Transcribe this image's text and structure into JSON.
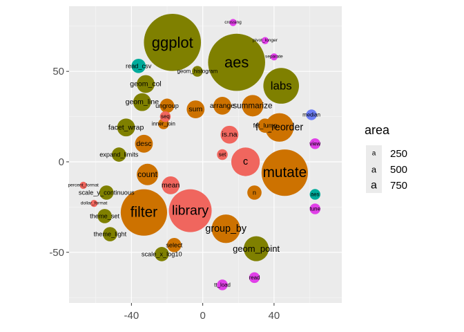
{
  "chart_data": {
    "type": "scatter",
    "subtype": "packed-circle bubble plot",
    "title": "",
    "xlabel": "",
    "ylabel": "",
    "xlim": [
      -75,
      78
    ],
    "ylim": [
      -78,
      86
    ],
    "xticks": [
      -40,
      0,
      40
    ],
    "yticks": [
      -50,
      0,
      50
    ],
    "xtick_labels": [
      "-40",
      "0",
      "40"
    ],
    "ytick_labels": [
      "-50",
      "0",
      "50"
    ],
    "grid": true,
    "panel_background": "#ebebeb",
    "legend": {
      "title": "area",
      "placement": "right",
      "entries": [
        {
          "key": "a",
          "label": "250",
          "size": "small"
        },
        {
          "key": "a",
          "label": "500",
          "size": "medium"
        },
        {
          "key": "a",
          "label": "750",
          "size": "large"
        }
      ]
    },
    "colors": {
      "olive": "#7f8000",
      "orange": "#cd7200",
      "salmon": "#f0665e",
      "teal": "#00ab9b",
      "blue": "#6d7ef6",
      "magenta": "#e040e8"
    },
    "bubbles": [
      {
        "label": "ggplot",
        "x": -17,
        "y": 66,
        "r": 16,
        "color": "olive"
      },
      {
        "label": "aes",
        "x": 19,
        "y": 55,
        "r": 16,
        "color": "olive"
      },
      {
        "label": "labs",
        "x": 44,
        "y": 42,
        "r": 10,
        "color": "olive"
      },
      {
        "label": "mutate",
        "x": 46,
        "y": -6,
        "r": 13,
        "color": "orange"
      },
      {
        "label": "filter",
        "x": -33,
        "y": -28,
        "r": 13,
        "color": "orange"
      },
      {
        "label": "library",
        "x": -7,
        "y": -27,
        "r": 12,
        "color": "salmon"
      },
      {
        "label": "group_by",
        "x": 13,
        "y": -37,
        "r": 8,
        "color": "orange"
      },
      {
        "label": "c",
        "x": 24,
        "y": 0,
        "r": 8,
        "color": "salmon"
      },
      {
        "label": "fct_reorder",
        "x": 43,
        "y": 19,
        "r": 8,
        "color": "orange"
      },
      {
        "label": "arrange",
        "x": 11,
        "y": 31,
        "r": 5,
        "color": "orange"
      },
      {
        "label": "summarize",
        "x": 28,
        "y": 31,
        "r": 6,
        "color": "orange"
      },
      {
        "label": "sum",
        "x": -4,
        "y": 29,
        "r": 5,
        "color": "orange"
      },
      {
        "label": "is.na",
        "x": 15,
        "y": 15,
        "r": 5,
        "color": "salmon"
      },
      {
        "label": "count",
        "x": -31,
        "y": -7,
        "r": 6,
        "color": "orange"
      },
      {
        "label": "desc",
        "x": -33,
        "y": 10,
        "r": 5,
        "color": "orange"
      },
      {
        "label": "mean",
        "x": -18,
        "y": -13,
        "r": 5,
        "color": "salmon"
      },
      {
        "label": "geom_point",
        "x": 30,
        "y": -48,
        "r": 7,
        "color": "olive"
      },
      {
        "label": "geom_col",
        "x": -32,
        "y": 43,
        "r": 5,
        "color": "olive"
      },
      {
        "label": "geom_line",
        "x": -34,
        "y": 33,
        "r": 5,
        "color": "olive"
      },
      {
        "label": "facet_wrap",
        "x": -43,
        "y": 19,
        "r": 5,
        "color": "olive"
      },
      {
        "label": "expand_limits",
        "x": -47,
        "y": 4,
        "r": 4,
        "color": "olive"
      },
      {
        "label": "scale_y_continuous",
        "x": -54,
        "y": -17,
        "r": 4,
        "color": "olive"
      },
      {
        "label": "theme_set",
        "x": -55,
        "y": -30,
        "r": 4,
        "color": "olive"
      },
      {
        "label": "theme_light",
        "x": -52,
        "y": -40,
        "r": 4,
        "color": "olive"
      },
      {
        "label": "read_csv",
        "x": -36,
        "y": 53,
        "r": 4,
        "color": "teal"
      },
      {
        "label": "ungroup",
        "x": -20,
        "y": 31,
        "r": 4,
        "color": "orange"
      },
      {
        "label": "inner_join",
        "x": -22,
        "y": 21,
        "r": 3,
        "color": "orange"
      },
      {
        "label": "select",
        "x": -16,
        "y": -46,
        "r": 4,
        "color": "orange"
      },
      {
        "label": "scale_x_log10",
        "x": -23,
        "y": -51,
        "r": 4,
        "color": "olive"
      },
      {
        "label": "n",
        "x": 29,
        "y": -17,
        "r": 4,
        "color": "orange"
      },
      {
        "label": "set",
        "x": 11,
        "y": 4,
        "r": 3,
        "color": "salmon"
      },
      {
        "label": "seq",
        "x": -21,
        "y": 25,
        "r": 3,
        "color": "salmon"
      },
      {
        "label": "fct_lump",
        "x": 35,
        "y": 20,
        "r": 4,
        "color": "orange"
      },
      {
        "label": "geom_histogram",
        "x": -3,
        "y": 50,
        "r": 3,
        "color": "olive"
      },
      {
        "label": "aes",
        "x": 63,
        "y": -18,
        "r": 3,
        "color": "teal"
      },
      {
        "label": "view",
        "x": 63,
        "y": 10,
        "r": 3,
        "color": "magenta"
      },
      {
        "label": "tune",
        "x": 63,
        "y": -26,
        "r": 3,
        "color": "magenta"
      },
      {
        "label": "read",
        "x": 29,
        "y": -64,
        "r": 3,
        "color": "magenta"
      },
      {
        "label": "tt_load",
        "x": 11,
        "y": -68,
        "r": 3,
        "color": "magenta"
      },
      {
        "label": "percent_format",
        "x": -67,
        "y": -13,
        "r": 2,
        "color": "salmon"
      },
      {
        "label": "dollar_format",
        "x": -61,
        "y": -23,
        "r": 2,
        "color": "salmon"
      },
      {
        "label": "median",
        "x": 61,
        "y": 26,
        "r": 3,
        "color": "blue"
      },
      {
        "label": "crossing",
        "x": 17,
        "y": 77,
        "r": 2,
        "color": "magenta"
      },
      {
        "label": "pivot_longer",
        "x": 35,
        "y": 67,
        "r": 2,
        "color": "magenta"
      },
      {
        "label": "separate",
        "x": 40,
        "y": 58,
        "r": 2,
        "color": "magenta"
      }
    ]
  }
}
